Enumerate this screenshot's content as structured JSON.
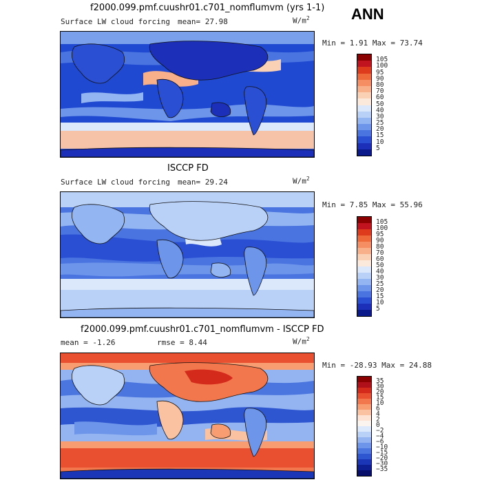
{
  "season": "ANN",
  "panels": [
    {
      "title": "f2000.099.pmf.cuushr01.c701_nomflumvm (yrs 1-1)",
      "left_label": "Surface LW cloud forcing",
      "mean_text": "mean=  27.98",
      "units_base": "W/m",
      "units_exp": "2",
      "minmax_text": "Min =   1.91 Max =  73.74",
      "colorbar_levels": [
        "105",
        "100",
        "95",
        "90",
        "80",
        "70",
        "60",
        "50",
        "40",
        "30",
        "25",
        "20",
        "15",
        "10",
        "5"
      ],
      "colorbar_colors": [
        "#8b0000",
        "#c1121f",
        "#de3a1c",
        "#ef6a3a",
        "#f58f63",
        "#f8b08b",
        "#fbd1b6",
        "#fbe9dc",
        "#dbe7fb",
        "#b9d0f7",
        "#93b5f1",
        "#6d95ea",
        "#4a74e0",
        "#2b4fd2",
        "#1b2fb8",
        "#0a1a8a"
      ],
      "map_style": "model"
    },
    {
      "title": "ISCCP FD",
      "left_label": "Surface LW cloud forcing",
      "mean_text": "mean=  29.24",
      "units_base": "W/m",
      "units_exp": "2",
      "minmax_text": "Min =   7.85 Max =  55.96",
      "colorbar_levels": [
        "105",
        "100",
        "95",
        "90",
        "80",
        "70",
        "60",
        "50",
        "40",
        "30",
        "25",
        "20",
        "15",
        "10",
        "5"
      ],
      "colorbar_colors": [
        "#8b0000",
        "#c1121f",
        "#de3a1c",
        "#ef6a3a",
        "#f58f63",
        "#f8b08b",
        "#fbd1b6",
        "#fbe9dc",
        "#dbe7fb",
        "#b9d0f7",
        "#93b5f1",
        "#6d95ea",
        "#4a74e0",
        "#2b4fd2",
        "#1b2fb8",
        "#0a1a8a"
      ],
      "map_style": "obs"
    },
    {
      "title": "f2000.099.pmf.cuushr01.c701_nomflumvm - ISCCP FD",
      "left_label": "mean =  -1.26",
      "mean_text": "rmse =   8.44",
      "units_base": "W/m",
      "units_exp": "2",
      "minmax_text": "Min = -28.93 Max =  24.88",
      "colorbar_levels": [
        "35",
        "30",
        "20",
        "15",
        "10",
        "6",
        "4",
        "2",
        "0",
        "−2",
        "−4",
        "−6",
        "−10",
        "−15",
        "−20",
        "−30",
        "−35"
      ],
      "colorbar_colors": [
        "#8b0000",
        "#b0101a",
        "#d32a1c",
        "#e8502f",
        "#f3774c",
        "#f89d72",
        "#fbc2a2",
        "#fde3d3",
        "#fbf3ee",
        "#dce8fb",
        "#b9d1f6",
        "#93b4f0",
        "#6d95e9",
        "#4b76df",
        "#2f56d1",
        "#1b36b7",
        "#0e1f93",
        "#070f6a"
      ],
      "map_style": "diff"
    }
  ]
}
